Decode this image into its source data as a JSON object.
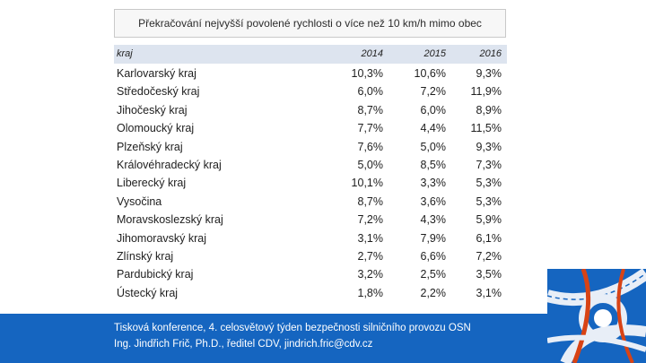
{
  "title": "Překračování nejvyšší povolené rychlosti o více než 10 km/h mimo obec",
  "table": {
    "col_kraj": "kraj",
    "years": [
      "2014",
      "2015",
      "2016"
    ],
    "rows": [
      {
        "name": "Karlovarský kraj",
        "v": [
          "10,3%",
          "10,6%",
          "9,3%"
        ]
      },
      {
        "name": "Středočeský kraj",
        "v": [
          "6,0%",
          "7,2%",
          "11,9%"
        ]
      },
      {
        "name": "Jihočeský kraj",
        "v": [
          "8,7%",
          "6,0%",
          "8,9%"
        ]
      },
      {
        "name": "Olomoucký kraj",
        "v": [
          "7,7%",
          "4,4%",
          "11,5%"
        ]
      },
      {
        "name": "Plzeňský kraj",
        "v": [
          "7,6%",
          "5,0%",
          "9,3%"
        ]
      },
      {
        "name": "Královéhradecký kraj",
        "v": [
          "5,0%",
          "8,5%",
          "7,3%"
        ]
      },
      {
        "name": "Liberecký kraj",
        "v": [
          "10,1%",
          "3,3%",
          "5,3%"
        ]
      },
      {
        "name": "Vysočina",
        "v": [
          "8,7%",
          "3,6%",
          "5,3%"
        ]
      },
      {
        "name": "Moravskoslezský kraj",
        "v": [
          "7,2%",
          "4,3%",
          "5,9%"
        ]
      },
      {
        "name": "Jihomoravský kraj",
        "v": [
          "3,1%",
          "7,9%",
          "6,1%"
        ]
      },
      {
        "name": "Zlínský kraj",
        "v": [
          "2,7%",
          "6,6%",
          "7,2%"
        ]
      },
      {
        "name": "Pardubický kraj",
        "v": [
          "3,2%",
          "2,5%",
          "3,5%"
        ]
      },
      {
        "name": "Ústecký kraj",
        "v": [
          "1,8%",
          "2,2%",
          "3,1%"
        ]
      }
    ]
  },
  "footer": {
    "line1": "Tisková konference, 4. celosvětový týden bezpečnosti silničního provozu OSN",
    "line2": "Ing. Jindřich Frič, Ph.D., ředitel CDV, jindrich.fric@cdv.cz"
  },
  "colors": {
    "footer_bg": "#1565c0",
    "header_bg": "#dde4ef"
  },
  "icons": {
    "logo": "road-junction-icon"
  }
}
